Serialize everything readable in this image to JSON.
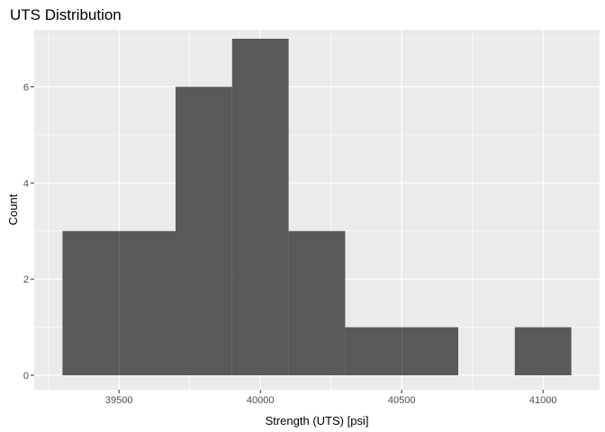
{
  "chart_data": {
    "type": "bar",
    "title": "UTS Distribution",
    "xlabel": "Strength (UTS) [psi]",
    "ylabel": "Count",
    "xlim": [
      39200,
      41200
    ],
    "ylim": [
      0,
      7
    ],
    "x_ticks": [
      39500,
      40000,
      40500,
      41000
    ],
    "y_ticks": [
      0,
      2,
      4,
      6
    ],
    "x_tick_labels": [
      "39500",
      "40000",
      "40500",
      "41000"
    ],
    "y_tick_labels": [
      "0",
      "2",
      "4",
      "6"
    ],
    "grid": true,
    "legend": "none",
    "bins": [
      {
        "x_start": 39300,
        "x_end": 39500,
        "count": 3
      },
      {
        "x_start": 39500,
        "x_end": 39700,
        "count": 3
      },
      {
        "x_start": 39700,
        "x_end": 39900,
        "count": 6
      },
      {
        "x_start": 39900,
        "x_end": 40100,
        "count": 7
      },
      {
        "x_start": 40100,
        "x_end": 40300,
        "count": 3
      },
      {
        "x_start": 40300,
        "x_end": 40500,
        "count": 1
      },
      {
        "x_start": 40500,
        "x_end": 40700,
        "count": 1
      },
      {
        "x_start": 40700,
        "x_end": 40900,
        "count": 0
      },
      {
        "x_start": 40900,
        "x_end": 41100,
        "count": 1
      }
    ],
    "colors": {
      "bar_fill": "#595959",
      "panel_background": "#ebebeb",
      "grid_line": "#ffffff",
      "tick_mark": "#333333"
    }
  }
}
